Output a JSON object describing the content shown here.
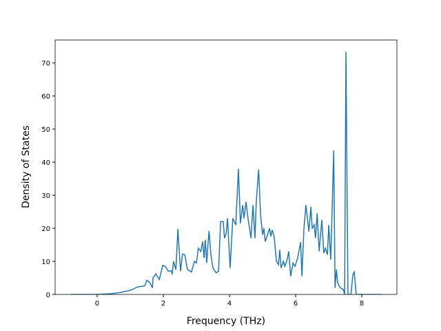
{
  "chart_data": {
    "type": "line",
    "xlabel": "Frequency (THz)",
    "ylabel": "Density of States",
    "x": [
      -0.79,
      0,
      0.4,
      0.71,
      1.02,
      1.23,
      1.44,
      1.5,
      1.6,
      1.67,
      1.69,
      1.77,
      1.88,
      1.98,
      2.06,
      2.15,
      2.23,
      2.27,
      2.31,
      2.38,
      2.44,
      2.52,
      2.58,
      2.65,
      2.73,
      2.85,
      2.94,
      3.0,
      3.06,
      3.13,
      3.19,
      3.23,
      3.27,
      3.31,
      3.38,
      3.44,
      3.5,
      3.6,
      3.67,
      3.73,
      3.81,
      3.85,
      3.9,
      3.94,
      4.02,
      4.1,
      4.19,
      4.27,
      4.33,
      4.4,
      4.44,
      4.5,
      4.56,
      4.65,
      4.71,
      4.77,
      4.81,
      4.88,
      4.94,
      5.0,
      5.04,
      5.08,
      5.15,
      5.21,
      5.25,
      5.29,
      5.35,
      5.42,
      5.48,
      5.52,
      5.56,
      5.63,
      5.67,
      5.73,
      5.79,
      5.85,
      5.92,
      5.98,
      6.06,
      6.15,
      6.19,
      6.25,
      6.31,
      6.4,
      6.46,
      6.5,
      6.56,
      6.6,
      6.65,
      6.71,
      6.79,
      6.85,
      6.9,
      6.96,
      7.0,
      7.06,
      7.15,
      7.19,
      7.23,
      7.27,
      7.35,
      7.44,
      7.48,
      7.52,
      7.58,
      7.67,
      7.73,
      7.77,
      7.83,
      8.6
    ],
    "series": [
      {
        "color": "#1f77b4",
        "values": [
          0,
          0,
          0.2,
          0.6,
          1.3,
          2.3,
          2.6,
          4.3,
          3.5,
          2.0,
          5.0,
          6.2,
          4.5,
          8.8,
          8.5,
          7.0,
          7.2,
          6.3,
          10.0,
          7.5,
          19.8,
          7.0,
          12.2,
          12.0,
          7.5,
          6.8,
          10.0,
          9.5,
          14.0,
          13.0,
          16.0,
          11.0,
          16.5,
          9.5,
          19.2,
          12.0,
          8.0,
          6.5,
          7.0,
          22.0,
          22.0,
          17.0,
          18.5,
          23.0,
          8.0,
          23.0,
          21.0,
          38.0,
          21.5,
          27.0,
          23.0,
          28.0,
          23.0,
          17.0,
          27.0,
          17.0,
          28.0,
          37.8,
          24.0,
          18.0,
          20.0,
          16.0,
          18.0,
          20.0,
          17.5,
          19.5,
          17.5,
          10.0,
          9.0,
          13.5,
          8.0,
          10.0,
          8.5,
          10.0,
          13.0,
          5.5,
          9.5,
          8.5,
          11.0,
          15.8,
          5.5,
          20.0,
          27.0,
          19.0,
          26.5,
          20.0,
          21.0,
          17.0,
          24.5,
          13.0,
          22.5,
          12.5,
          14.0,
          12.0,
          21.0,
          10.5,
          43.5,
          2.0,
          7.5,
          3.5,
          2.0,
          1.5,
          0,
          73.3,
          0,
          0,
          6.0,
          6.8,
          0,
          0
        ]
      }
    ],
    "xlim": [
      -1.27,
      9.06
    ],
    "ylim": [
      0,
      76.9
    ],
    "xticks": [
      0,
      2,
      4,
      6,
      8
    ],
    "yticks": [
      0,
      10,
      20,
      30,
      40,
      50,
      60,
      70
    ]
  }
}
